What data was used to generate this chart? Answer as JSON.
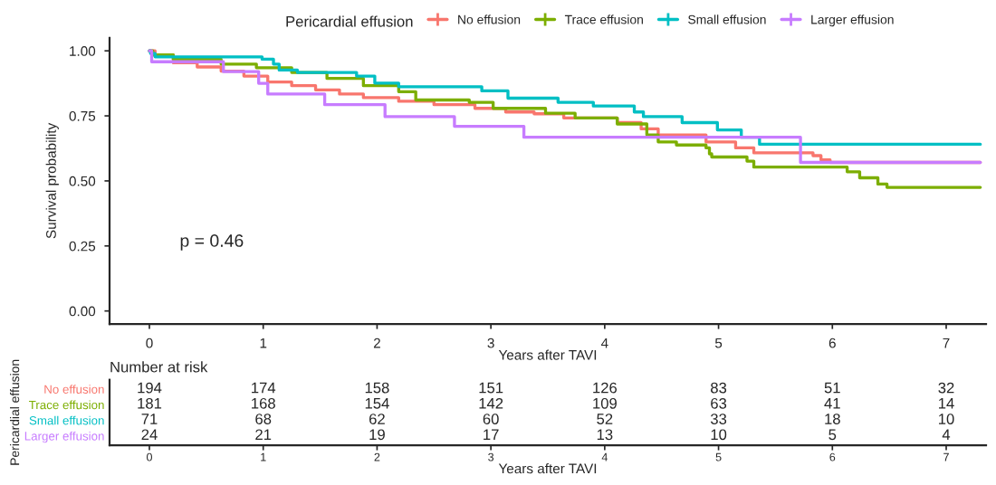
{
  "chart_data": [
    {
      "type": "step",
      "xlabel": "Years after TAVI",
      "ylabel": "Survival probability",
      "legend_title": "Pericardial effusion",
      "legend": "top",
      "xlim": [
        -0.35,
        7.35
      ],
      "xticks": [
        0,
        1,
        2,
        3,
        4,
        5,
        6,
        7
      ],
      "ylim": [
        -0.05,
        1.05
      ],
      "yticks": [
        {
          "value": 0,
          "label": "0.00"
        },
        {
          "value": 0.25,
          "label": "0.25"
        },
        {
          "value": 0.5,
          "label": "0.50"
        },
        {
          "value": 0.75,
          "label": "0.75"
        },
        {
          "value": 1,
          "label": "1.00"
        }
      ],
      "grid": false,
      "annotations": [
        "p = 0.46"
      ],
      "series": [
        {
          "name": "No effusion",
          "color": "#f8766d",
          "x": [
            0,
            0.05,
            0.21,
            0.42,
            0.63,
            0.83,
            1.04,
            1.25,
            1.46,
            1.67,
            1.88,
            2.19,
            2.5,
            2.86,
            3.13,
            3.38,
            3.64,
            4.11,
            4.32,
            4.47,
            4.89,
            5.15,
            5.31,
            5.83,
            5.9,
            5.98,
            7.3
          ],
          "values": [
            1.0,
            0.984,
            0.954,
            0.938,
            0.922,
            0.903,
            0.88,
            0.866,
            0.85,
            0.834,
            0.82,
            0.806,
            0.793,
            0.779,
            0.765,
            0.758,
            0.742,
            0.724,
            0.7,
            0.677,
            0.65,
            0.627,
            0.608,
            0.597,
            0.581,
            0.571,
            0.571
          ]
        },
        {
          "name": "Trace effusion",
          "color": "#7cae00",
          "x": [
            0,
            0.03,
            0.21,
            0.63,
            0.94,
            1.25,
            1.56,
            1.88,
            2.19,
            2.34,
            2.81,
            3.02,
            3.48,
            3.74,
            4.11,
            4.37,
            4.47,
            4.63,
            4.89,
            4.92,
            4.94,
            5.25,
            5.31,
            6.13,
            6.24,
            6.4,
            6.48,
            7.3
          ],
          "values": [
            1.0,
            0.984,
            0.968,
            0.949,
            0.935,
            0.917,
            0.894,
            0.866,
            0.843,
            0.811,
            0.802,
            0.779,
            0.76,
            0.742,
            0.719,
            0.677,
            0.65,
            0.638,
            0.627,
            0.604,
            0.592,
            0.576,
            0.553,
            0.535,
            0.512,
            0.488,
            0.475,
            0.475
          ]
        },
        {
          "name": "Small effusion",
          "color": "#00bfc4",
          "x": [
            0,
            0.01,
            0.05,
            0.99,
            1.09,
            1.14,
            1.3,
            1.82,
            1.98,
            2.19,
            2.92,
            3.15,
            3.59,
            3.9,
            4.26,
            4.34,
            4.68,
            4.99,
            5.2,
            5.36,
            7.3
          ],
          "values": [
            1.0,
            0.99,
            0.977,
            0.968,
            0.949,
            0.926,
            0.917,
            0.903,
            0.876,
            0.862,
            0.846,
            0.818,
            0.802,
            0.788,
            0.765,
            0.747,
            0.724,
            0.696,
            0.668,
            0.641,
            0.641
          ]
        },
        {
          "name": "Larger effusion",
          "color": "#c77cff",
          "x": [
            0,
            0.02,
            0.65,
            0.96,
            1.04,
            1.54,
            2.07,
            2.68,
            3.29,
            5.72,
            7.3
          ],
          "values": [
            1.0,
            0.958,
            0.92,
            0.875,
            0.834,
            0.793,
            0.747,
            0.71,
            0.668,
            0.571,
            0.571
          ]
        }
      ]
    },
    {
      "type": "heatmap",
      "title": "Number at risk",
      "xlabel": "Years after TAVI",
      "ylabel": "Pericardial effusion",
      "categories": [
        "0",
        "1",
        "2",
        "3",
        "4",
        "5",
        "6",
        "7"
      ],
      "data_labels": true,
      "y_categories": [
        "No effusion",
        "Trace effusion",
        "Small effusion",
        "Larger effusion"
      ],
      "colors": [
        "#f8766d",
        "#7cae00",
        "#00bfc4",
        "#c77cff"
      ],
      "cells": [
        [
          194,
          174,
          158,
          151,
          126,
          83,
          51,
          32
        ],
        [
          181,
          168,
          154,
          142,
          109,
          63,
          41,
          14
        ],
        [
          71,
          68,
          62,
          60,
          52,
          33,
          18,
          10
        ],
        [
          24,
          21,
          19,
          17,
          13,
          10,
          5,
          4
        ]
      ]
    }
  ]
}
